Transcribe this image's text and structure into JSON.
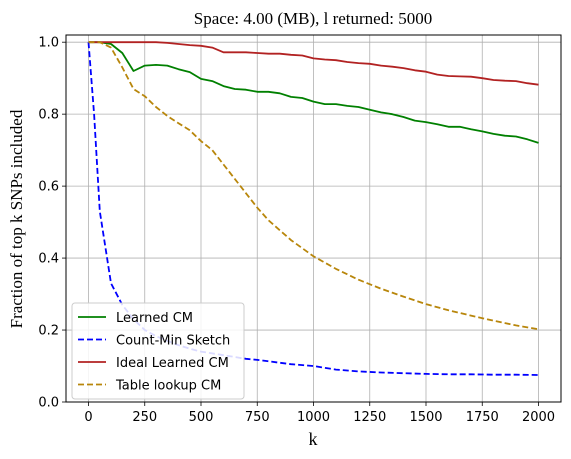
{
  "chart_data": {
    "type": "line",
    "title": "Space: 4.00 (MB), l returned: 5000",
    "xlabel": "k",
    "ylabel": "Fraction of top k SNPs included",
    "xlim": [
      -100,
      2100
    ],
    "ylim": [
      0.0,
      1.02
    ],
    "xticks": [
      0,
      250,
      500,
      750,
      1000,
      1250,
      1500,
      1750,
      2000
    ],
    "xtick_labels": [
      "0",
      "250",
      "500",
      "750",
      "1000",
      "1250",
      "1500",
      "1750",
      "2000"
    ],
    "yticks": [
      0.0,
      0.2,
      0.4,
      0.6,
      0.8,
      1.0
    ],
    "ytick_labels": [
      "0.0",
      "0.2",
      "0.4",
      "0.6",
      "0.8",
      "1.0"
    ],
    "grid": true,
    "legend_position": "lower-left",
    "series": [
      {
        "name": "Learned CM",
        "color": "#008000",
        "dash": "solid",
        "x": [
          0,
          50,
          100,
          150,
          200,
          250,
          300,
          350,
          400,
          450,
          500,
          550,
          600,
          650,
          700,
          750,
          800,
          850,
          900,
          950,
          1000,
          1050,
          1100,
          1150,
          1200,
          1250,
          1300,
          1350,
          1400,
          1450,
          1500,
          1550,
          1600,
          1650,
          1700,
          1750,
          1800,
          1850,
          1900,
          1950,
          2000
        ],
        "values": [
          1.0,
          1.0,
          0.995,
          0.97,
          0.92,
          0.935,
          0.937,
          0.935,
          0.925,
          0.917,
          0.898,
          0.892,
          0.878,
          0.87,
          0.868,
          0.862,
          0.862,
          0.858,
          0.848,
          0.845,
          0.835,
          0.828,
          0.828,
          0.823,
          0.82,
          0.812,
          0.805,
          0.8,
          0.792,
          0.782,
          0.778,
          0.772,
          0.765,
          0.765,
          0.758,
          0.752,
          0.745,
          0.74,
          0.738,
          0.73,
          0.72
        ]
      },
      {
        "name": "Count-Min Sketch",
        "color": "#0000ff",
        "dash": "dashed",
        "x": [
          0,
          25,
          50,
          75,
          100,
          150,
          200,
          250,
          300,
          350,
          400,
          450,
          500,
          550,
          600,
          650,
          700,
          750,
          800,
          900,
          1000,
          1100,
          1200,
          1300,
          1400,
          1500,
          1600,
          1700,
          1800,
          1900,
          2000
        ],
        "values": [
          1.0,
          0.8,
          0.53,
          0.43,
          0.33,
          0.27,
          0.23,
          0.2,
          0.183,
          0.17,
          0.158,
          0.148,
          0.14,
          0.135,
          0.13,
          0.125,
          0.12,
          0.117,
          0.113,
          0.105,
          0.1,
          0.09,
          0.085,
          0.082,
          0.08,
          0.078,
          0.077,
          0.077,
          0.076,
          0.076,
          0.075
        ]
      },
      {
        "name": "Ideal Learned CM",
        "color": "#b22222",
        "dash": "solid",
        "x": [
          0,
          50,
          100,
          150,
          200,
          250,
          300,
          350,
          400,
          450,
          500,
          550,
          600,
          650,
          700,
          750,
          800,
          850,
          900,
          950,
          1000,
          1050,
          1100,
          1150,
          1200,
          1250,
          1300,
          1350,
          1400,
          1450,
          1500,
          1550,
          1600,
          1650,
          1700,
          1750,
          1800,
          1850,
          1900,
          1950,
          2000
        ],
        "values": [
          1.0,
          1.0,
          1.0,
          1.0,
          1.0,
          1.0,
          1.0,
          0.998,
          0.995,
          0.992,
          0.99,
          0.985,
          0.972,
          0.972,
          0.972,
          0.97,
          0.968,
          0.968,
          0.965,
          0.963,
          0.955,
          0.952,
          0.95,
          0.945,
          0.942,
          0.94,
          0.935,
          0.932,
          0.928,
          0.922,
          0.918,
          0.91,
          0.906,
          0.905,
          0.904,
          0.9,
          0.895,
          0.893,
          0.892,
          0.886,
          0.882
        ]
      },
      {
        "name": "Table lookup CM",
        "color": "#b8860b",
        "dash": "dashed",
        "x": [
          0,
          50,
          100,
          150,
          200,
          250,
          300,
          350,
          400,
          450,
          500,
          550,
          600,
          650,
          700,
          750,
          800,
          900,
          1000,
          1100,
          1200,
          1300,
          1400,
          1500,
          1600,
          1700,
          1800,
          1900,
          2000
        ],
        "values": [
          1.0,
          1.0,
          0.985,
          0.93,
          0.87,
          0.85,
          0.82,
          0.795,
          0.775,
          0.755,
          0.725,
          0.7,
          0.66,
          0.62,
          0.58,
          0.54,
          0.505,
          0.45,
          0.405,
          0.37,
          0.34,
          0.315,
          0.293,
          0.272,
          0.255,
          0.24,
          0.226,
          0.213,
          0.202
        ]
      }
    ]
  }
}
